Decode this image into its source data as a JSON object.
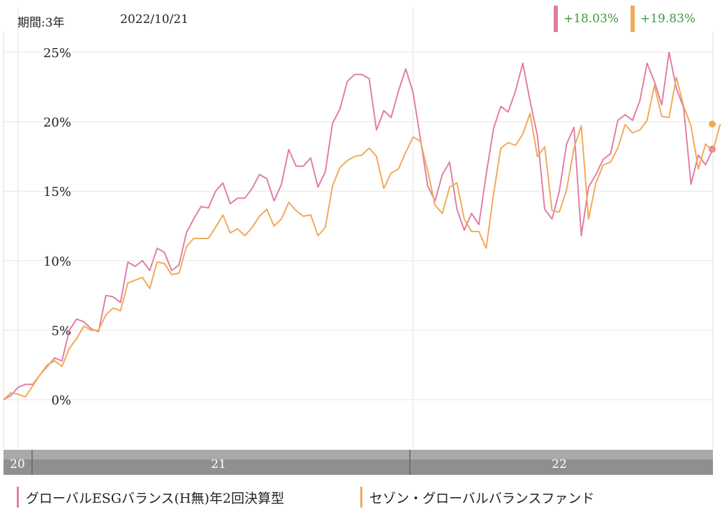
{
  "header": {
    "period": "期間:3年",
    "date": "2022/10/21",
    "returns": [
      {
        "value": "+18.03%",
        "color": "#e07fa3"
      },
      {
        "value": "+19.83%",
        "color": "#f0aa5a"
      }
    ]
  },
  "legend": [
    {
      "label": "グローバルESGバランス(H無)年2回決算型",
      "color": "#e07fa3"
    },
    {
      "label": "セゾン・グローバルバランスファンド",
      "color": "#f0aa5a"
    }
  ],
  "chart_data": {
    "type": "line",
    "y_ticks": [
      "25%",
      "20%",
      "15%",
      "10%",
      "5%",
      "0%"
    ],
    "x_tick_labels": [
      "20",
      "21",
      "22"
    ],
    "ylim": [
      -3.5,
      26.5
    ],
    "grid": true,
    "series": [
      {
        "name": "グローバルESGバランス(H無)年2回決算型",
        "color": "#e07fa3",
        "values": [
          0.0,
          0.3,
          0.9,
          1.1,
          1.1,
          1.8,
          2.4,
          3.0,
          2.8,
          5.0,
          5.8,
          5.6,
          5.1,
          4.9,
          7.5,
          7.4,
          7.0,
          9.9,
          9.6,
          10.0,
          9.3,
          10.9,
          10.6,
          9.3,
          9.7,
          12.0,
          13.0,
          13.9,
          13.8,
          15.0,
          15.6,
          14.1,
          14.5,
          14.5,
          15.2,
          16.2,
          15.9,
          14.3,
          15.5,
          18.0,
          16.8,
          16.8,
          17.4,
          15.3,
          16.4,
          19.9,
          20.9,
          22.9,
          23.4,
          23.4,
          23.1,
          19.4,
          20.8,
          20.3,
          22.2,
          23.8,
          22.1,
          18.8,
          15.4,
          14.3,
          16.2,
          17.1,
          13.7,
          12.2,
          13.4,
          12.6,
          16.2,
          19.5,
          21.1,
          20.7,
          22.2,
          24.2,
          21.5,
          19.0,
          13.7,
          13.0,
          15.0,
          18.4,
          19.6,
          11.8,
          15.3,
          16.2,
          17.3,
          17.7,
          20.1,
          20.5,
          20.1,
          21.5,
          24.2,
          22.9,
          21.2,
          25.0,
          22.4,
          21.0,
          15.5,
          17.6,
          16.9,
          18.03
        ],
        "end_value_label": "+18.03%"
      },
      {
        "name": "セゾン・グローバルバランスファンド",
        "color": "#f0aa5a",
        "values": [
          0.0,
          0.5,
          0.4,
          0.2,
          1.0,
          1.8,
          2.5,
          2.8,
          2.4,
          3.7,
          4.4,
          5.3,
          5.0,
          5.0,
          6.1,
          6.6,
          6.4,
          8.4,
          8.6,
          8.8,
          8.0,
          9.9,
          9.8,
          9.0,
          9.1,
          11.0,
          11.6,
          11.6,
          11.6,
          12.4,
          13.3,
          12.0,
          12.3,
          11.8,
          12.4,
          13.2,
          13.7,
          12.5,
          13.0,
          14.2,
          13.6,
          13.2,
          13.3,
          11.8,
          12.4,
          15.4,
          16.7,
          17.2,
          17.5,
          17.6,
          18.1,
          17.5,
          15.2,
          16.3,
          16.6,
          17.8,
          18.9,
          18.6,
          16.5,
          14.0,
          13.4,
          15.3,
          15.6,
          13.0,
          12.1,
          12.1,
          10.9,
          14.8,
          18.1,
          18.5,
          18.3,
          19.1,
          20.6,
          17.5,
          18.2,
          13.6,
          13.5,
          15.1,
          18.1,
          19.7,
          13.0,
          15.6,
          16.9,
          17.1,
          18.1,
          19.8,
          19.2,
          19.4,
          20.1,
          22.6,
          20.4,
          20.3,
          23.2,
          21.1,
          19.7,
          16.6,
          18.4,
          17.9,
          19.83
        ],
        "end_value_label": "+19.83%"
      }
    ]
  }
}
